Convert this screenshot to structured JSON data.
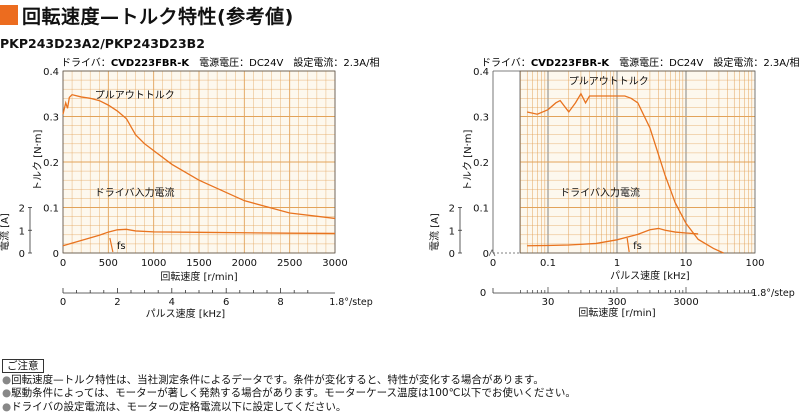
{
  "header": {
    "title": "回転速度—トルク特性(参考値)",
    "model": "PKP243D23A2/PKP243D23B2"
  },
  "colors": {
    "accent": "#ec6c1f",
    "curve": "#e8731f",
    "grid": "#e2a35a",
    "panel": "#fdf8ee"
  },
  "chart_data": [
    {
      "type": "line",
      "subtitle_label": "ドライバ：",
      "subtitle_model": "CVD223FBR-K",
      "subtitle_rest": "電源電圧：DC24V　設定電流：2.3A/相",
      "xlabel": "回転速度 [r/min]",
      "x2label": "パルス速度 [kHz]",
      "x2note": "1.8°/step",
      "ylabel": "トルク [N·m]",
      "y2label": "電流 [A]",
      "xlim": [
        0,
        3000
      ],
      "ylim": [
        0,
        0.4
      ],
      "y2lim": [
        0,
        2
      ],
      "xticks": [
        "0",
        "500",
        "1000",
        "1500",
        "2000",
        "2500",
        "3000"
      ],
      "yticks": [
        "0",
        "0.1",
        "0.2",
        "0.3",
        "0.4"
      ],
      "y2ticks": [
        "0",
        "1",
        "2"
      ],
      "x2ticks": [
        "0",
        "2",
        "4",
        "6",
        "8"
      ],
      "series": [
        {
          "name": "プルアウトトルク",
          "axis": "torque",
          "x": [
            0,
            30,
            50,
            70,
            100,
            200,
            300,
            400,
            500,
            600,
            700,
            800,
            900,
            1000,
            1200,
            1500,
            2000,
            2500,
            3000
          ],
          "y": [
            0.305,
            0.33,
            0.318,
            0.342,
            0.348,
            0.343,
            0.34,
            0.335,
            0.325,
            0.312,
            0.295,
            0.26,
            0.24,
            0.225,
            0.195,
            0.16,
            0.115,
            0.088,
            0.076
          ]
        },
        {
          "name": "ドライバ入力電流",
          "axis": "current",
          "x": [
            0,
            200,
            400,
            500,
            600,
            700,
            800,
            1000,
            1500,
            2000,
            2500,
            3000
          ],
          "y": [
            0.32,
            0.55,
            0.78,
            0.92,
            1.02,
            1.04,
            0.97,
            0.93,
            0.91,
            0.89,
            0.87,
            0.86
          ]
        }
      ],
      "annotations": {
        "fs": "fs",
        "fs_x": 550
      }
    },
    {
      "type": "line",
      "xscale": "log",
      "subtitle_label": "ドライバ：",
      "subtitle_model": "CVD223FBR-K",
      "subtitle_rest": "電源電圧：DC24V　設定電流：2.3A/相",
      "xlabel": "パルス速度 [kHz]",
      "x2label": "回転速度 [r/min]",
      "x2note": "1.8°/step",
      "ylabel": "トルク [N·m]",
      "y2label": "電流 [A]",
      "xlim": [
        0.01,
        100
      ],
      "ylim": [
        0,
        0.4
      ],
      "y2lim": [
        0,
        2
      ],
      "xticks": [
        "0",
        "0.1",
        "1",
        "10",
        "100"
      ],
      "yticks": [
        "0",
        "0.1",
        "0.2",
        "0.3",
        "0.4"
      ],
      "y2ticks": [
        "0",
        "1",
        "2"
      ],
      "x2ticks": [
        "0",
        "30",
        "300",
        "3000"
      ],
      "series": [
        {
          "name": "プルアウトトルク",
          "axis": "torque",
          "x": [
            0.05,
            0.07,
            0.1,
            0.13,
            0.15,
            0.2,
            0.25,
            0.3,
            0.35,
            0.4,
            0.5,
            0.7,
            1.0,
            1.3,
            1.6,
            2.0,
            3.0,
            5.0,
            7.0,
            10,
            15,
            25,
            35
          ],
          "y": [
            0.31,
            0.305,
            0.315,
            0.33,
            0.335,
            0.31,
            0.33,
            0.35,
            0.33,
            0.345,
            0.345,
            0.345,
            0.345,
            0.345,
            0.34,
            0.33,
            0.275,
            0.17,
            0.11,
            0.065,
            0.03,
            0.01,
            0.0
          ]
        },
        {
          "name": "ドライバ入力電流",
          "axis": "current",
          "x": [
            0.05,
            0.1,
            0.2,
            0.5,
            1.0,
            1.5,
            2.0,
            3.0,
            4.0,
            5.0,
            7.0,
            10,
            15
          ],
          "y": [
            0.32,
            0.33,
            0.35,
            0.42,
            0.58,
            0.72,
            0.82,
            1.02,
            1.08,
            1.0,
            0.92,
            0.88,
            0.84
          ]
        }
      ],
      "annotations": {
        "fs": "fs",
        "fs_x": 1.5
      }
    }
  ],
  "notes": {
    "heading": "ご注意",
    "lines": [
      "回転速度—トルク特性は、当社測定条件によるデータです。条件が変化すると、特性が変化する場合があります。",
      "駆動条件によっては、モーターが著しく発熱する場合があります。モーターケース温度は100℃以下でお使いください。",
      "ドライバの設定電流は、モーターの定格電流以下に設定してください。"
    ]
  }
}
